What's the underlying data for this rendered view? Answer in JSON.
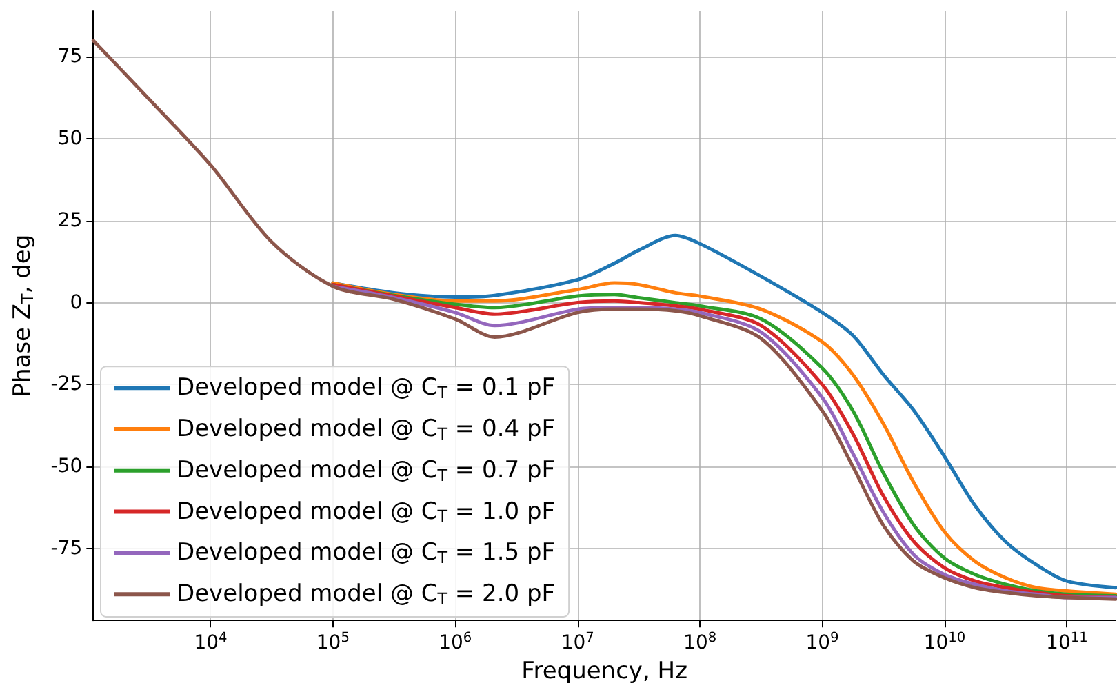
{
  "chart_data": {
    "type": "line",
    "xlabel": "Frequency, Hz",
    "ylabel": "Phase Z$_{T}$, deg",
    "log": "x",
    "grid": true,
    "legend": "bottom left",
    "line_style": "solid",
    "marker": "none",
    "xlim": [
      1100,
      250000000000
    ],
    "ylim": [
      -97,
      89
    ],
    "xticks": [
      {
        "value": 10000,
        "label": "10$^{4}$"
      },
      {
        "value": 100000,
        "label": "10$^{5}$"
      },
      {
        "value": 1000000,
        "label": "10$^{6}$"
      },
      {
        "value": 10000000,
        "label": "10$^{7}$"
      },
      {
        "value": 100000000,
        "label": "10$^{8}$"
      },
      {
        "value": 1000000000,
        "label": "10$^{9}$"
      },
      {
        "value": 10000000000,
        "label": "10$^{10}$"
      },
      {
        "value": 100000000000,
        "label": "10$^{11}$"
      }
    ],
    "yticks": [
      -75,
      -50,
      -25,
      0,
      25,
      50,
      75
    ],
    "x": [
      1100,
      3162,
      10000,
      31623,
      100000,
      316228,
      1000000,
      2100000,
      10000000,
      20000000,
      31620000,
      63000000,
      100000000,
      316200000,
      1000000000,
      1778000000,
      3162000000,
      5623000000,
      10000000000,
      17780000000,
      31620000000,
      56230000000,
      100000000000,
      250000000000
    ],
    "series": [
      {
        "name": "Developed model @ C$_{T}$ = 0.1 pF",
        "color": "#1f77b4",
        "values": [
          null,
          null,
          null,
          null,
          6,
          3,
          1.7,
          2.2,
          7,
          12,
          16,
          20.5,
          18,
          8,
          -3,
          -10,
          -22,
          -33,
          -47,
          -62,
          -73,
          -80,
          -85,
          -87
        ]
      },
      {
        "name": "Developed model @ C$_{T}$ = 0.4 pF",
        "color": "#ff7f0e",
        "values": [
          null,
          null,
          null,
          null,
          6,
          2.5,
          0.5,
          0.5,
          4,
          6,
          5.5,
          3,
          2,
          -2,
          -12,
          -22,
          -37,
          -55,
          -70,
          -79,
          -84,
          -87,
          -88,
          -89
        ]
      },
      {
        "name": "Developed model @ C$_{T}$ = 0.7 pF",
        "color": "#2ca02c",
        "values": [
          null,
          null,
          null,
          null,
          5.5,
          2.2,
          -0.5,
          -1.5,
          2,
          2.5,
          1.5,
          0,
          -1,
          -5,
          -20,
          -33,
          -52,
          -68,
          -78,
          -83,
          -86,
          -88,
          -89,
          -89.5
        ]
      },
      {
        "name": "Developed model @ C$_{T}$ = 1.0 pF",
        "color": "#d62728",
        "values": [
          null,
          null,
          null,
          null,
          5.5,
          2,
          -1.5,
          -3.5,
          0,
          0.5,
          0,
          -1,
          -2,
          -7,
          -25,
          -40,
          -59,
          -73,
          -81,
          -85,
          -87,
          -88.5,
          -89.5,
          -90
        ]
      },
      {
        "name": "Developed model @ C$_{T}$ = 1.5 pF",
        "color": "#9467bd",
        "values": [
          null,
          null,
          null,
          null,
          5,
          1.5,
          -3,
          -7,
          -2,
          -1.5,
          -1.5,
          -2,
          -3,
          -9,
          -29,
          -46,
          -64,
          -77,
          -83,
          -86,
          -88,
          -89,
          -90,
          -90
        ]
      },
      {
        "name": "Developed model @ C$_{T}$ = 2.0 pF",
        "color": "#8c564b",
        "values": [
          80,
          62,
          42,
          18.5,
          5,
          1,
          -5,
          -10.5,
          -3,
          -2,
          -2,
          -2.5,
          -4,
          -11,
          -33,
          -50,
          -68,
          -79,
          -84,
          -87,
          -88.5,
          -89.5,
          -90,
          -90.5
        ]
      }
    ]
  }
}
